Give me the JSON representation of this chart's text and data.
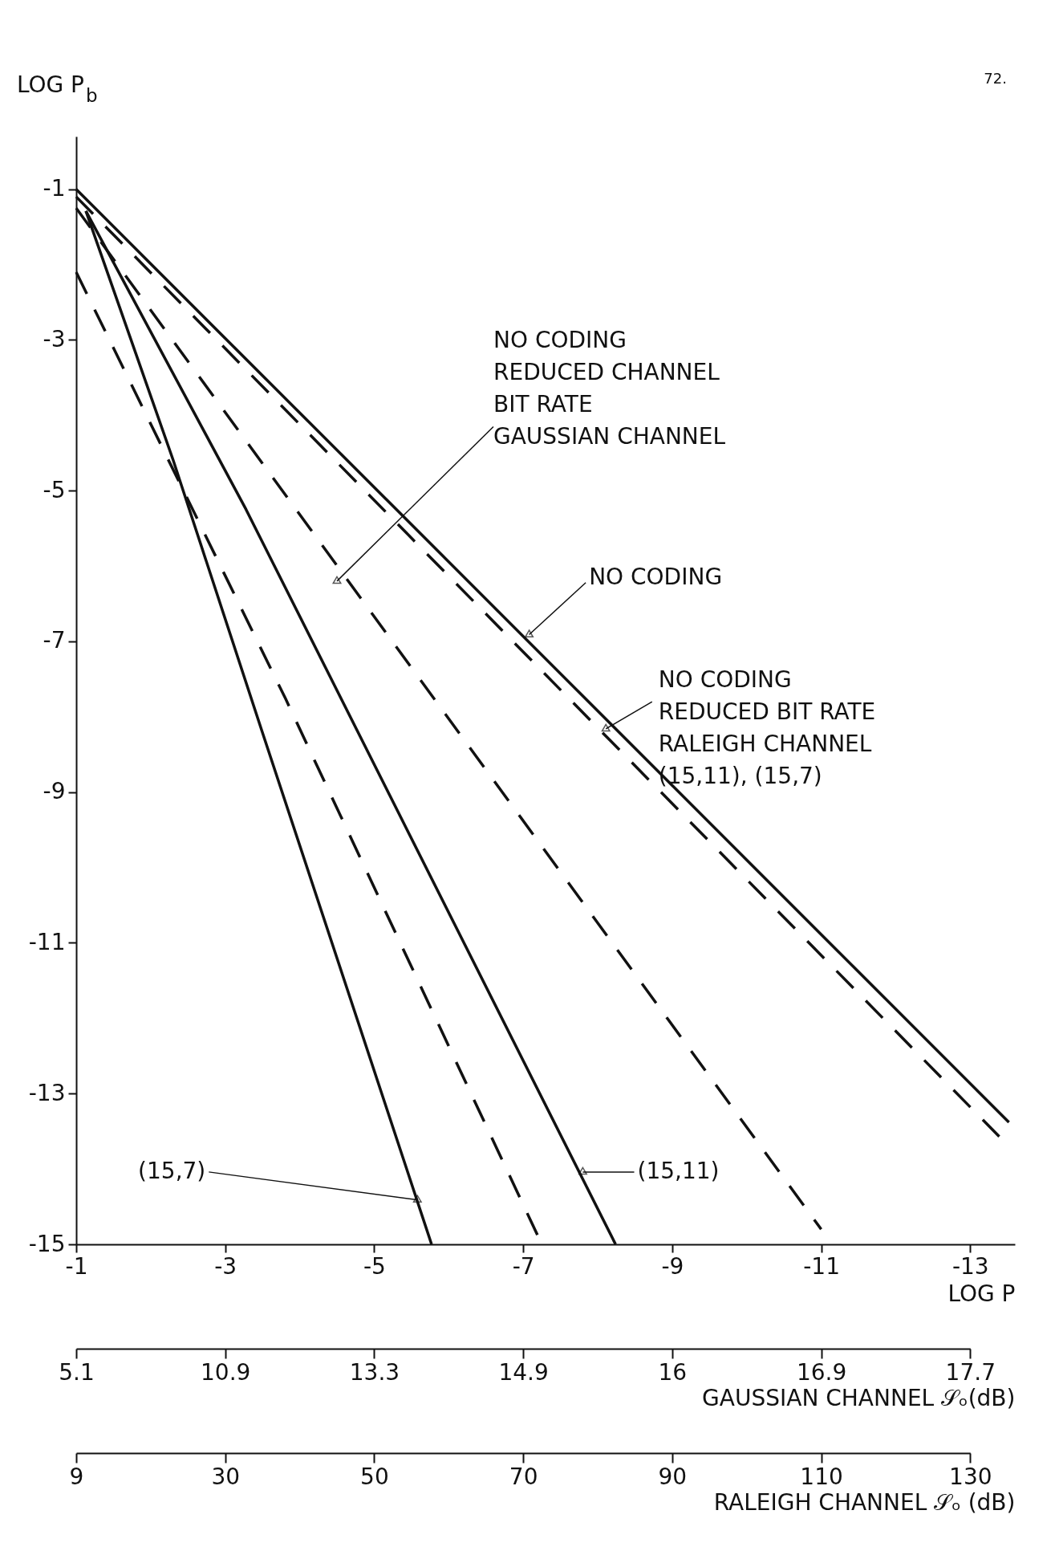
{
  "chart_data": [
    {
      "type": "line",
      "xlabel": "LOG P",
      "ylabel": "LOG P$_{b}$",
      "xlim": [
        -1,
        -13.6
      ],
      "ylim": [
        -15,
        -0.3
      ],
      "xticks": [
        -1,
        -3,
        -5,
        -7,
        -9,
        -11,
        -13
      ],
      "yticks": [
        -1,
        -3,
        -5,
        -7,
        -9,
        -11,
        -13,
        -15
      ],
      "grid": false,
      "series": [
        {
          "color": "#111111",
          "line_style": "solid",
          "x": [
            -1,
            -13.52
          ],
          "values": [
            -1,
            -13.38
          ]
        },
        {
          "color": "#111111",
          "line_style": "dashed",
          "x": [
            -1,
            -13.39
          ],
          "values": [
            -1.1,
            -13.57
          ]
        },
        {
          "color": "#111111",
          "line_style": "dashed",
          "x": [
            -1,
            -11
          ],
          "values": [
            -1.25,
            -14.8
          ]
        },
        {
          "color": "#111111",
          "line_style": "solid",
          "x": [
            -1.13,
            -3.28,
            -4.77,
            -8.24
          ],
          "values": [
            -1.29,
            -5.25,
            -8.18,
            -15
          ]
        },
        {
          "color": "#111111",
          "line_style": "dashed",
          "x": [
            -1,
            -3.81,
            -7.25
          ],
          "values": [
            -2.1,
            -7.76,
            -15
          ]
        },
        {
          "color": "#111111",
          "line_style": "solid",
          "x": [
            -1.13,
            -2.3,
            -3.49,
            -5.77
          ],
          "values": [
            -1.29,
            -4.59,
            -8.18,
            -15
          ]
        }
      ],
      "annotations": [
        {
          "text": "NO  CODING\nREDUCED  CHANNEL\nBIT RATE\nGAUSSIAN  CHANNEL",
          "x": -4.5,
          "y": -6.2
        },
        {
          "text": "NO  CODING",
          "x": -7.08,
          "y": -6.91
        },
        {
          "text": "NO  CODING\nREDUCED  BIT  RATE\nRALEIGH  CHANNEL\n(15,11), (15,7)",
          "x": -8.11,
          "y": -8.16
        },
        {
          "text": "(15,7)",
          "x": -5.58,
          "y": -14.41
        },
        {
          "text": "(15,11)",
          "x": -7.8,
          "y": -14.04
        },
        "72."
      ]
    },
    {
      "type": "other",
      "xlabel": "GAUSSIAN CHANNEL 𝒮ₒ(dB)",
      "categories": [
        "5.1",
        "10.9",
        "13.3",
        "14.9",
        "16",
        "16.9",
        "17.7"
      ]
    },
    {
      "type": "other",
      "xlabel": "RALEIGH CHANNEL 𝒮ₒ (dB)",
      "categories": [
        "9",
        "30",
        "50",
        "70",
        "90",
        "110",
        "130"
      ]
    }
  ]
}
